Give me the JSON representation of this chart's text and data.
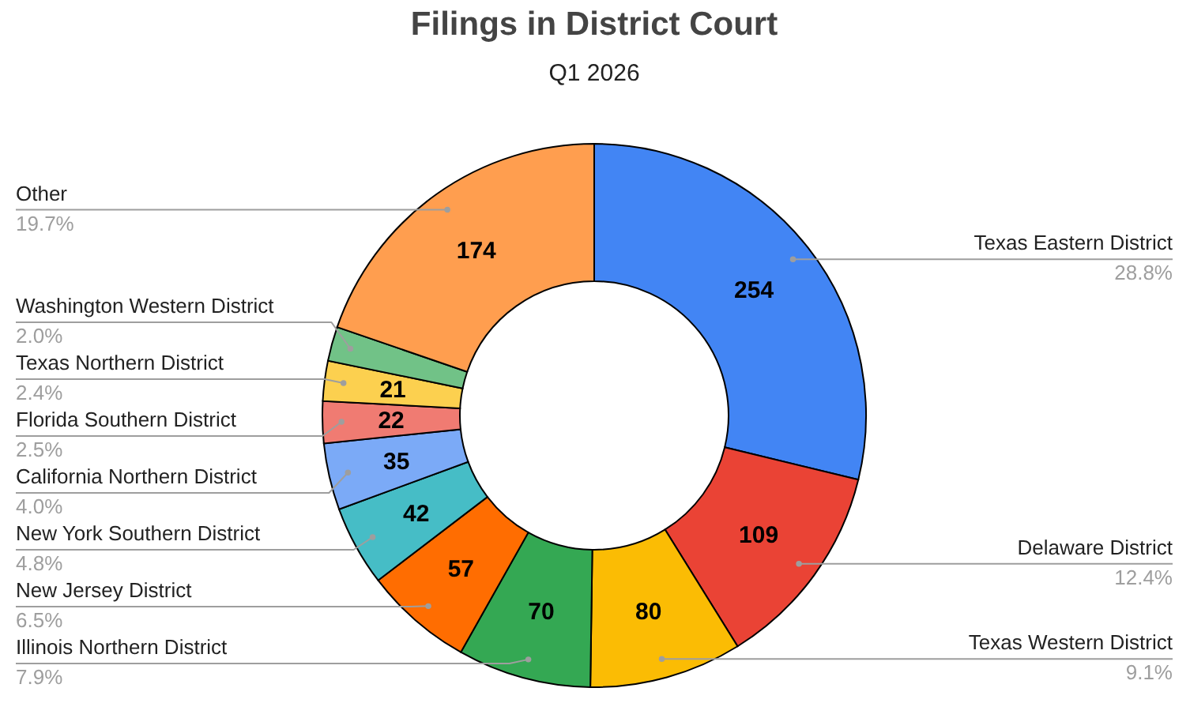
{
  "chart_data": {
    "type": "donut",
    "title": "Filings in District Court",
    "subtitle": "Q1 2026",
    "categories": [
      "Texas Eastern District",
      "Delaware District",
      "Texas Western District",
      "Illinois Northern District",
      "New Jersey District",
      "New York Southern District",
      "California Northern District",
      "Florida Southern District",
      "Texas Northern District",
      "Washington Western District",
      "Other"
    ],
    "values": [
      254,
      109,
      80,
      70,
      57,
      42,
      35,
      22,
      21,
      18,
      174
    ],
    "colors": [
      "#4285f4",
      "#ea4335",
      "#fbbc04",
      "#34a853",
      "#ff6d01",
      "#46bdc6",
      "#7baaf7",
      "#f07b72",
      "#fcd04f",
      "#71c287",
      "#ff9e4f"
    ],
    "value_labels": [
      "254",
      "109",
      "80",
      "70",
      "57",
      "42",
      "35",
      "22",
      "21",
      null,
      "174"
    ],
    "annotations": [
      "28.8%",
      "12.4%",
      "9.1%",
      "7.9%",
      "6.5%",
      "4.8%",
      "4.0%",
      "2.5%",
      "2.4%",
      "2.0%",
      "19.7%"
    ]
  }
}
